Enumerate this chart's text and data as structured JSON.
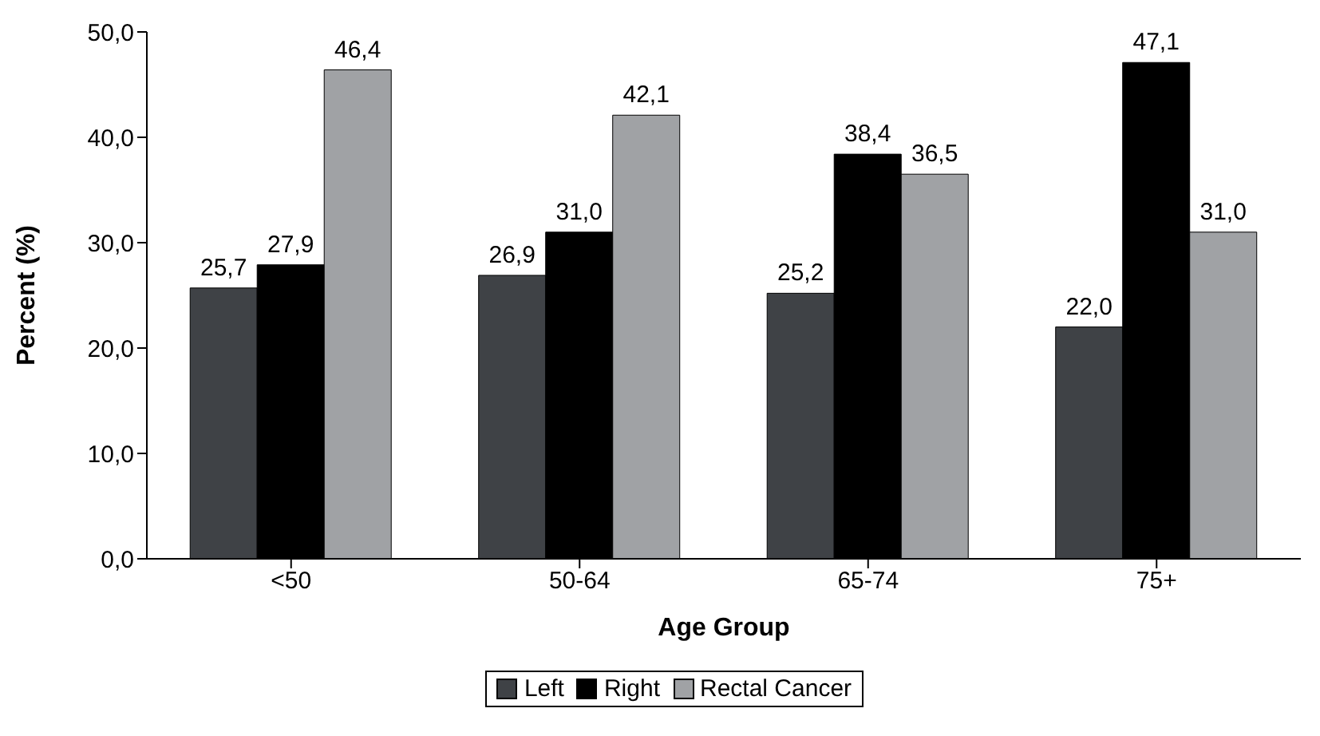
{
  "chart_data": {
    "type": "bar",
    "xlabel": "Age Group",
    "ylabel": "Percent (%)",
    "categories": [
      "<50",
      "50-64",
      "65-74",
      "75+"
    ],
    "series": [
      {
        "name": "Left",
        "color": "#3f4246",
        "values": [
          25.7,
          26.9,
          25.2,
          22.0
        ],
        "value_labels": [
          "25,7",
          "26,9",
          "25,2",
          "22,0"
        ]
      },
      {
        "name": "Right",
        "color": "#000000",
        "values": [
          27.9,
          31.0,
          38.4,
          47.1
        ],
        "value_labels": [
          "27,9",
          "31,0",
          "38,4",
          "47,1"
        ]
      },
      {
        "name": "Rectal Cancer",
        "color": "#a0a2a5",
        "values": [
          46.4,
          42.1,
          36.5,
          31.0
        ],
        "value_labels": [
          "46,4",
          "42,1",
          "36,5",
          "31,0"
        ]
      }
    ],
    "ylim": [
      0,
      50
    ],
    "yticks": [
      {
        "value": 0,
        "label": "0,0"
      },
      {
        "value": 10,
        "label": "10,0"
      },
      {
        "value": 20,
        "label": "20,0"
      },
      {
        "value": 30,
        "label": "30,0"
      },
      {
        "value": 40,
        "label": "40,0"
      },
      {
        "value": 50,
        "label": "50,0"
      }
    ],
    "grid": false,
    "legend": "bottom"
  }
}
